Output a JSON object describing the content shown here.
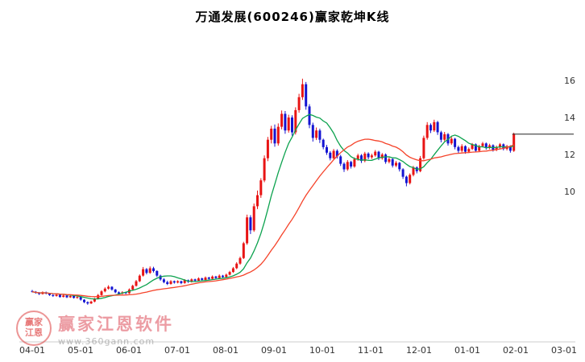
{
  "chart": {
    "title": "万通发展(600246)赢家乾坤K线"
  },
  "watermark": {
    "brand": "赢家江恩软件",
    "url": "www.360gann.com",
    "logo_line1": "赢家",
    "logo_line2": "江恩"
  },
  "chart_data": {
    "type": "candlestick",
    "title": "万通发展(600246)赢家乾坤K线",
    "x_ticks": [
      "04-01",
      "05-01",
      "06-01",
      "07-01",
      "08-01",
      "09-01",
      "10-01",
      "11-01",
      "12-01",
      "01-01",
      "02-01",
      "03-01"
    ],
    "y_ticks": [
      16,
      14,
      12,
      10
    ],
    "ylim": [
      1.87,
      17.96
    ],
    "up_color": "#e81414",
    "down_color": "#1414d2",
    "ma_short": {
      "period": 10,
      "color": "#0ca24e"
    },
    "ma_long": {
      "period": 30,
      "color": "#f5432a"
    },
    "last_price": 13.1,
    "last_price_line_color": "#222222",
    "candles": [
      [
        4.62,
        4.68,
        4.54,
        4.58
      ],
      [
        4.58,
        4.62,
        4.48,
        4.52
      ],
      [
        4.52,
        4.56,
        4.41,
        4.46
      ],
      [
        4.46,
        4.6,
        4.43,
        4.55
      ],
      [
        4.55,
        4.59,
        4.44,
        4.48
      ],
      [
        4.48,
        4.52,
        4.36,
        4.4
      ],
      [
        4.4,
        4.45,
        4.3,
        4.35
      ],
      [
        4.35,
        4.47,
        4.32,
        4.42
      ],
      [
        4.42,
        4.44,
        4.26,
        4.3
      ],
      [
        4.3,
        4.43,
        4.27,
        4.38
      ],
      [
        4.38,
        4.4,
        4.24,
        4.28
      ],
      [
        4.28,
        4.39,
        4.25,
        4.35
      ],
      [
        4.35,
        4.37,
        4.21,
        4.25
      ],
      [
        4.25,
        4.34,
        4.2,
        4.3
      ],
      [
        4.3,
        4.32,
        4.1,
        4.15
      ],
      [
        4.15,
        4.18,
        3.97,
        4.02
      ],
      [
        4.02,
        4.06,
        3.88,
        3.95
      ],
      [
        3.95,
        4.1,
        3.92,
        4.05
      ],
      [
        4.05,
        4.25,
        4.01,
        4.2
      ],
      [
        4.2,
        4.46,
        4.16,
        4.4
      ],
      [
        4.4,
        4.66,
        4.36,
        4.6
      ],
      [
        4.6,
        4.82,
        4.55,
        4.75
      ],
      [
        4.75,
        4.93,
        4.7,
        4.85
      ],
      [
        4.85,
        4.88,
        4.64,
        4.7
      ],
      [
        4.7,
        4.73,
        4.5,
        4.55
      ],
      [
        4.55,
        4.6,
        4.43,
        4.48
      ],
      [
        4.48,
        4.61,
        4.44,
        4.55
      ],
      [
        4.55,
        4.58,
        4.45,
        4.5
      ],
      [
        4.5,
        4.76,
        4.46,
        4.7
      ],
      [
        4.7,
        4.96,
        4.66,
        4.9
      ],
      [
        4.9,
        5.22,
        4.86,
        5.15
      ],
      [
        5.15,
        5.52,
        5.1,
        5.45
      ],
      [
        5.45,
        5.92,
        5.4,
        5.8
      ],
      [
        5.8,
        5.86,
        5.52,
        5.6
      ],
      [
        5.6,
        5.95,
        5.55,
        5.85
      ],
      [
        5.85,
        5.93,
        5.62,
        5.7
      ],
      [
        5.7,
        5.74,
        5.38,
        5.45
      ],
      [
        5.45,
        5.5,
        5.18,
        5.25
      ],
      [
        5.25,
        5.32,
        5.04,
        5.1
      ],
      [
        5.1,
        5.18,
        4.94,
        5.0
      ],
      [
        5.0,
        5.21,
        4.96,
        5.15
      ],
      [
        5.15,
        5.19,
        5.02,
        5.08
      ],
      [
        5.08,
        5.2,
        5.03,
        5.15
      ],
      [
        5.15,
        5.18,
        4.99,
        5.05
      ],
      [
        5.05,
        5.26,
        5.01,
        5.2
      ],
      [
        5.2,
        5.24,
        5.06,
        5.12
      ],
      [
        5.12,
        5.3,
        5.08,
        5.25
      ],
      [
        5.25,
        5.29,
        5.12,
        5.18
      ],
      [
        5.18,
        5.36,
        5.14,
        5.3
      ],
      [
        5.3,
        5.34,
        5.16,
        5.22
      ],
      [
        5.22,
        5.41,
        5.18,
        5.35
      ],
      [
        5.35,
        5.39,
        5.22,
        5.28
      ],
      [
        5.28,
        5.46,
        5.24,
        5.4
      ],
      [
        5.4,
        5.44,
        5.26,
        5.32
      ],
      [
        5.32,
        5.52,
        5.28,
        5.45
      ],
      [
        5.45,
        5.49,
        5.32,
        5.38
      ],
      [
        5.38,
        5.56,
        5.34,
        5.5
      ],
      [
        5.5,
        5.71,
        5.46,
        5.65
      ],
      [
        5.65,
        5.92,
        5.6,
        5.85
      ],
      [
        5.85,
        6.18,
        5.8,
        6.1
      ],
      [
        6.1,
        6.48,
        6.04,
        6.4
      ],
      [
        6.4,
        7.28,
        6.35,
        7.2
      ],
      [
        7.2,
        8.75,
        7.12,
        8.6
      ],
      [
        8.6,
        8.72,
        7.7,
        7.9
      ],
      [
        7.9,
        9.35,
        7.82,
        9.2
      ],
      [
        9.2,
        10.05,
        9.05,
        9.8
      ],
      [
        9.8,
        10.72,
        9.66,
        10.6
      ],
      [
        10.6,
        11.95,
        10.5,
        11.8
      ],
      [
        11.8,
        12.95,
        11.64,
        12.8
      ],
      [
        12.8,
        13.55,
        12.6,
        13.4
      ],
      [
        13.4,
        13.62,
        12.42,
        12.6
      ],
      [
        12.6,
        13.68,
        12.48,
        13.5
      ],
      [
        13.5,
        14.38,
        13.36,
        14.2
      ],
      [
        14.2,
        14.35,
        13.12,
        13.3
      ],
      [
        13.3,
        14.15,
        13.18,
        14.0
      ],
      [
        14.0,
        14.12,
        13.02,
        13.2
      ],
      [
        13.2,
        14.55,
        13.08,
        14.4
      ],
      [
        14.4,
        15.28,
        14.26,
        15.1
      ],
      [
        15.1,
        16.1,
        14.95,
        15.8
      ],
      [
        15.8,
        15.92,
        14.42,
        14.6
      ],
      [
        14.6,
        14.72,
        13.42,
        13.6
      ],
      [
        13.6,
        13.72,
        12.7,
        12.9
      ],
      [
        12.9,
        13.46,
        12.78,
        13.3
      ],
      [
        13.3,
        13.4,
        12.62,
        12.8
      ],
      [
        12.8,
        12.86,
        12.28,
        12.4
      ],
      [
        12.4,
        12.52,
        11.98,
        12.1
      ],
      [
        12.1,
        12.18,
        11.68,
        11.8
      ],
      [
        11.8,
        12.3,
        11.74,
        12.2
      ],
      [
        12.2,
        12.28,
        11.78,
        11.9
      ],
      [
        11.9,
        11.98,
        11.38,
        11.5
      ],
      [
        11.5,
        11.58,
        11.06,
        11.2
      ],
      [
        11.2,
        11.7,
        11.12,
        11.6
      ],
      [
        11.6,
        11.66,
        11.24,
        11.35
      ],
      [
        11.35,
        11.84,
        11.28,
        11.75
      ],
      [
        11.75,
        12.04,
        11.66,
        11.95
      ],
      [
        11.95,
        12.02,
        11.54,
        11.65
      ],
      [
        11.65,
        12.14,
        11.58,
        12.05
      ],
      [
        12.05,
        12.12,
        11.74,
        11.85
      ],
      [
        11.85,
        12.04,
        11.76,
        11.95
      ],
      [
        11.95,
        12.24,
        11.88,
        12.15
      ],
      [
        12.15,
        12.2,
        11.7,
        11.8
      ],
      [
        11.8,
        12.08,
        11.72,
        12.0
      ],
      [
        12.0,
        12.06,
        11.5,
        11.6
      ],
      [
        11.6,
        11.84,
        11.52,
        11.75
      ],
      [
        11.75,
        11.8,
        11.3,
        11.4
      ],
      [
        11.4,
        11.64,
        11.32,
        11.55
      ],
      [
        11.55,
        11.6,
        11.08,
        11.2
      ],
      [
        11.2,
        11.26,
        10.68,
        10.8
      ],
      [
        10.8,
        10.86,
        10.28,
        10.45
      ],
      [
        10.45,
        10.98,
        10.38,
        10.9
      ],
      [
        10.9,
        11.38,
        10.82,
        11.3
      ],
      [
        11.3,
        11.36,
        10.98,
        11.1
      ],
      [
        11.1,
        11.92,
        11.04,
        11.8
      ],
      [
        11.8,
        13.02,
        11.72,
        12.9
      ],
      [
        12.9,
        13.75,
        12.8,
        13.6
      ],
      [
        13.6,
        13.68,
        13.16,
        13.3
      ],
      [
        13.3,
        13.88,
        13.22,
        13.75
      ],
      [
        13.75,
        13.82,
        13.06,
        13.2
      ],
      [
        13.2,
        13.28,
        12.66,
        12.8
      ],
      [
        12.8,
        13.22,
        12.72,
        13.1
      ],
      [
        13.1,
        13.16,
        12.48,
        12.6
      ],
      [
        12.6,
        12.96,
        12.52,
        12.85
      ],
      [
        12.85,
        12.9,
        12.28,
        12.4
      ],
      [
        12.4,
        12.48,
        12.08,
        12.2
      ],
      [
        12.2,
        12.56,
        12.12,
        12.45
      ],
      [
        12.45,
        12.5,
        12.04,
        12.15
      ],
      [
        12.15,
        12.38,
        12.08,
        12.3
      ],
      [
        12.3,
        12.62,
        12.24,
        12.55
      ],
      [
        12.55,
        12.6,
        12.12,
        12.2
      ],
      [
        12.2,
        12.52,
        12.14,
        12.45
      ],
      [
        12.45,
        12.68,
        12.38,
        12.6
      ],
      [
        12.6,
        12.65,
        12.26,
        12.35
      ],
      [
        12.35,
        12.58,
        12.28,
        12.5
      ],
      [
        12.5,
        12.55,
        12.16,
        12.25
      ],
      [
        12.25,
        12.48,
        12.18,
        12.4
      ],
      [
        12.4,
        12.62,
        12.32,
        12.55
      ],
      [
        12.55,
        12.6,
        12.22,
        12.3
      ],
      [
        12.3,
        12.52,
        12.22,
        12.45
      ],
      [
        12.45,
        12.5,
        12.1,
        12.2
      ],
      [
        12.2,
        13.18,
        12.14,
        13.1
      ]
    ]
  }
}
